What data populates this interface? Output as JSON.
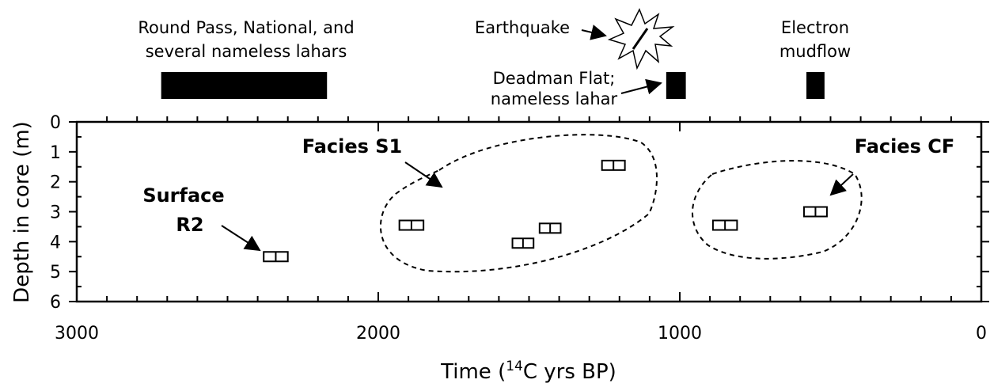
{
  "chart_data": {
    "type": "scatter",
    "xlabel_parts": [
      "Time (",
      "14",
      "C yrs BP)"
    ],
    "ylabel": "Depth in core (m)",
    "xlim": [
      3000,
      0
    ],
    "ylim": [
      0,
      6
    ],
    "xticks": [
      3000,
      2000,
      1000,
      0
    ],
    "xminor": [
      2900,
      2800,
      2700,
      2600,
      2500,
      2400,
      2300,
      2200,
      2100,
      1900,
      1800,
      1700,
      1600,
      1500,
      1400,
      1300,
      1200,
      1100,
      900,
      800,
      700,
      600,
      500,
      400,
      300,
      200,
      100
    ],
    "yticks": [
      0,
      1,
      2,
      3,
      4,
      5,
      6
    ],
    "yminor": [
      0.5,
      1.5,
      2.5,
      3.5,
      4.5,
      5.5
    ],
    "x": [
      2340,
      1890,
      1520,
      1430,
      1220,
      850,
      550
    ],
    "y": [
      4.5,
      3.45,
      4.05,
      3.55,
      1.45,
      3.45,
      3.0
    ],
    "xerr": [
      40,
      40,
      35,
      35,
      38,
      40,
      38
    ],
    "events": [
      {
        "label": [
          "Round Pass, National, and",
          "several nameless lahars"
        ],
        "start": 2720,
        "end": 2170
      },
      {
        "label": [
          "Deadman Flat;",
          "nameless lahar"
        ],
        "start": 1045,
        "end": 980
      },
      {
        "label": [
          "Electron",
          "mudflow"
        ],
        "start": 580,
        "end": 520
      }
    ],
    "annotations": {
      "earthquake": "Earthquake",
      "facies_s1": "Facies S1",
      "facies_cf": "Facies CF",
      "surface": [
        "Surface",
        "R2"
      ]
    }
  }
}
